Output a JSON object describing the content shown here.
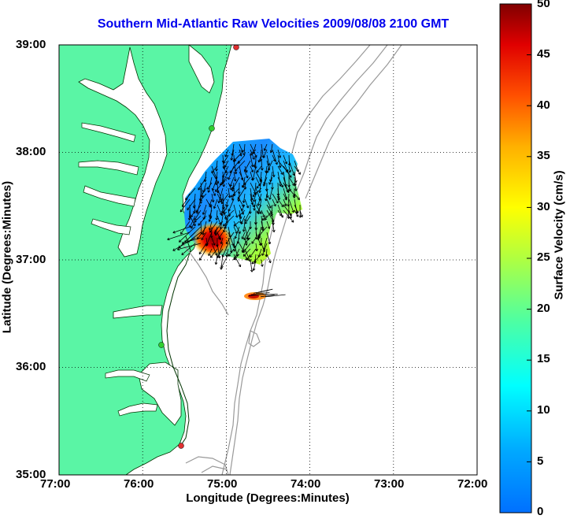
{
  "title": "Southern Mid-Atlantic Raw Velocities 2009/08/08 2100 GMT",
  "x_axis": {
    "label": "Longitude (Degrees:Minutes)",
    "ticks": [
      "77:00",
      "76:00",
      "75:00",
      "74:00",
      "73:00",
      "72:00"
    ]
  },
  "y_axis": {
    "label": "Latitude (Degrees:Minutes)",
    "ticks": [
      "39:00",
      "38:00",
      "37:00",
      "36:00",
      "35:00"
    ]
  },
  "colorbar": {
    "label": "Surface Velocity (cm/s)",
    "ticks": [
      "50",
      "45",
      "40",
      "35",
      "30",
      "25",
      "20",
      "15",
      "10",
      "5",
      "0"
    ],
    "min": 0,
    "max": 50,
    "colormap": "jet"
  },
  "map": {
    "lon_range": [
      "77:00",
      "72:00"
    ],
    "lat_range": [
      "35:00",
      "39:00"
    ],
    "land_color": "#5af5a5",
    "ocean_color": "#ffffff",
    "bathymetry_color": "#999999",
    "grid": "dotted",
    "station_markers": [
      {
        "color": "#e03030"
      },
      {
        "color": "#30d030"
      },
      {
        "color": "#30d030"
      },
      {
        "color": "#e03030"
      }
    ]
  }
}
